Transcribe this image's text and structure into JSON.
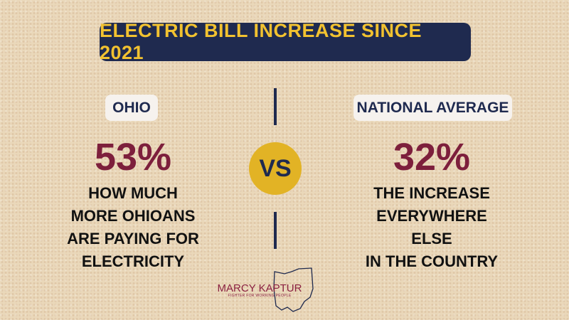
{
  "title": "ELECTRIC BILL INCREASE SINCE 2021",
  "left": {
    "label": "OHIO",
    "value": "53%",
    "lines": [
      "HOW MUCH",
      "MORE OHIOANS",
      "ARE PAYING FOR",
      "ELECTRICITY"
    ]
  },
  "versus": "VS",
  "right": {
    "label": "NATIONAL AVERAGE",
    "value": "32%",
    "lines": [
      "THE INCREASE",
      "EVERYWHERE",
      "ELSE",
      "IN THE COUNTRY"
    ]
  },
  "footer": {
    "name": "MARCY KAPTUR",
    "tagline": "FIGHTER FOR WORKING PEOPLE"
  }
}
